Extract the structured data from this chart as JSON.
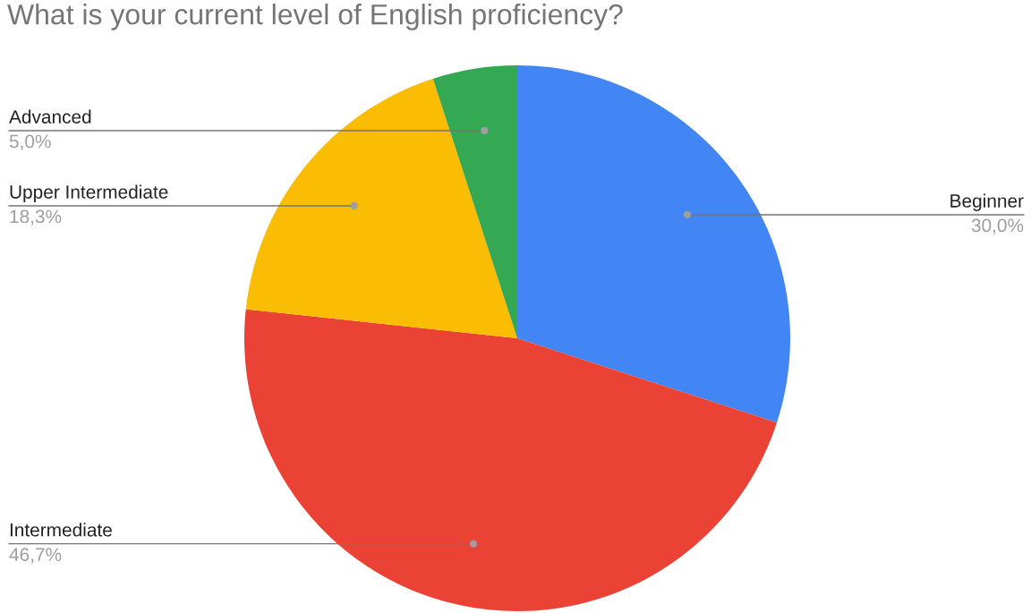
{
  "chart_data": {
    "type": "pie",
    "title": "What is your current level of English proficiency?",
    "categories": [
      "Beginner",
      "Intermediate",
      "Upper Intermediate",
      "Advanced"
    ],
    "values": [
      30.0,
      46.7,
      18.3,
      5.0
    ],
    "colors": [
      "#4285f4",
      "#ea4335",
      "#fbbc04",
      "#34a853"
    ],
    "value_labels": [
      "30,0%",
      "46,7%",
      "18,3%",
      "5,0%"
    ]
  }
}
